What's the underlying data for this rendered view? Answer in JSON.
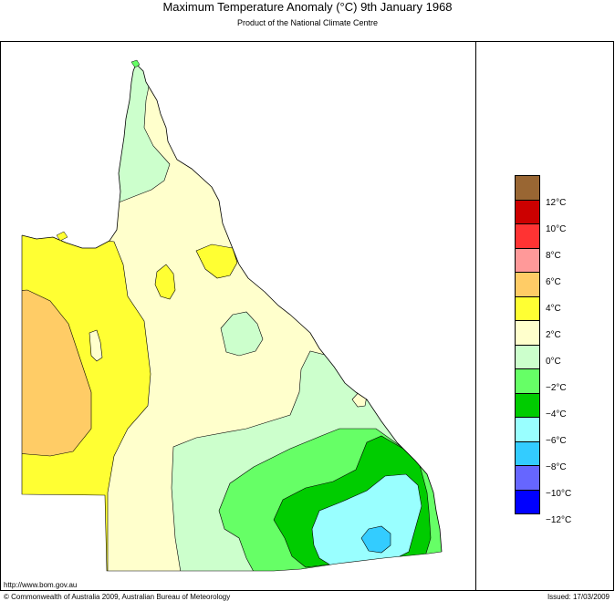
{
  "header": {
    "title": "Maximum Temperature Anomaly (°C)  9th January 1968",
    "subtitle": "Product of the National Climate Centre"
  },
  "legend": {
    "colors": [
      "#996633",
      "#cc0000",
      "#ff3333",
      "#ff9999",
      "#ffcc66",
      "#ffff33",
      "#ffffcc",
      "#ccffcc",
      "#66ff66",
      "#00cc00",
      "#99ffff",
      "#33ccff",
      "#6666ff",
      "#0000ff"
    ],
    "labels": [
      "12°C",
      "10°C",
      "8°C",
      "6°C",
      "4°C",
      "2°C",
      "0°C",
      "−2°C",
      "−4°C",
      "−6°C",
      "−8°C",
      "−10°C",
      "−12°C"
    ]
  },
  "footer": {
    "url": "http://www.bom.gov.au",
    "copyright": "© Commonwealth of Australia 2009, Australian Bureau of Meteorology",
    "issued": "Issued: 17/03/2009"
  }
}
